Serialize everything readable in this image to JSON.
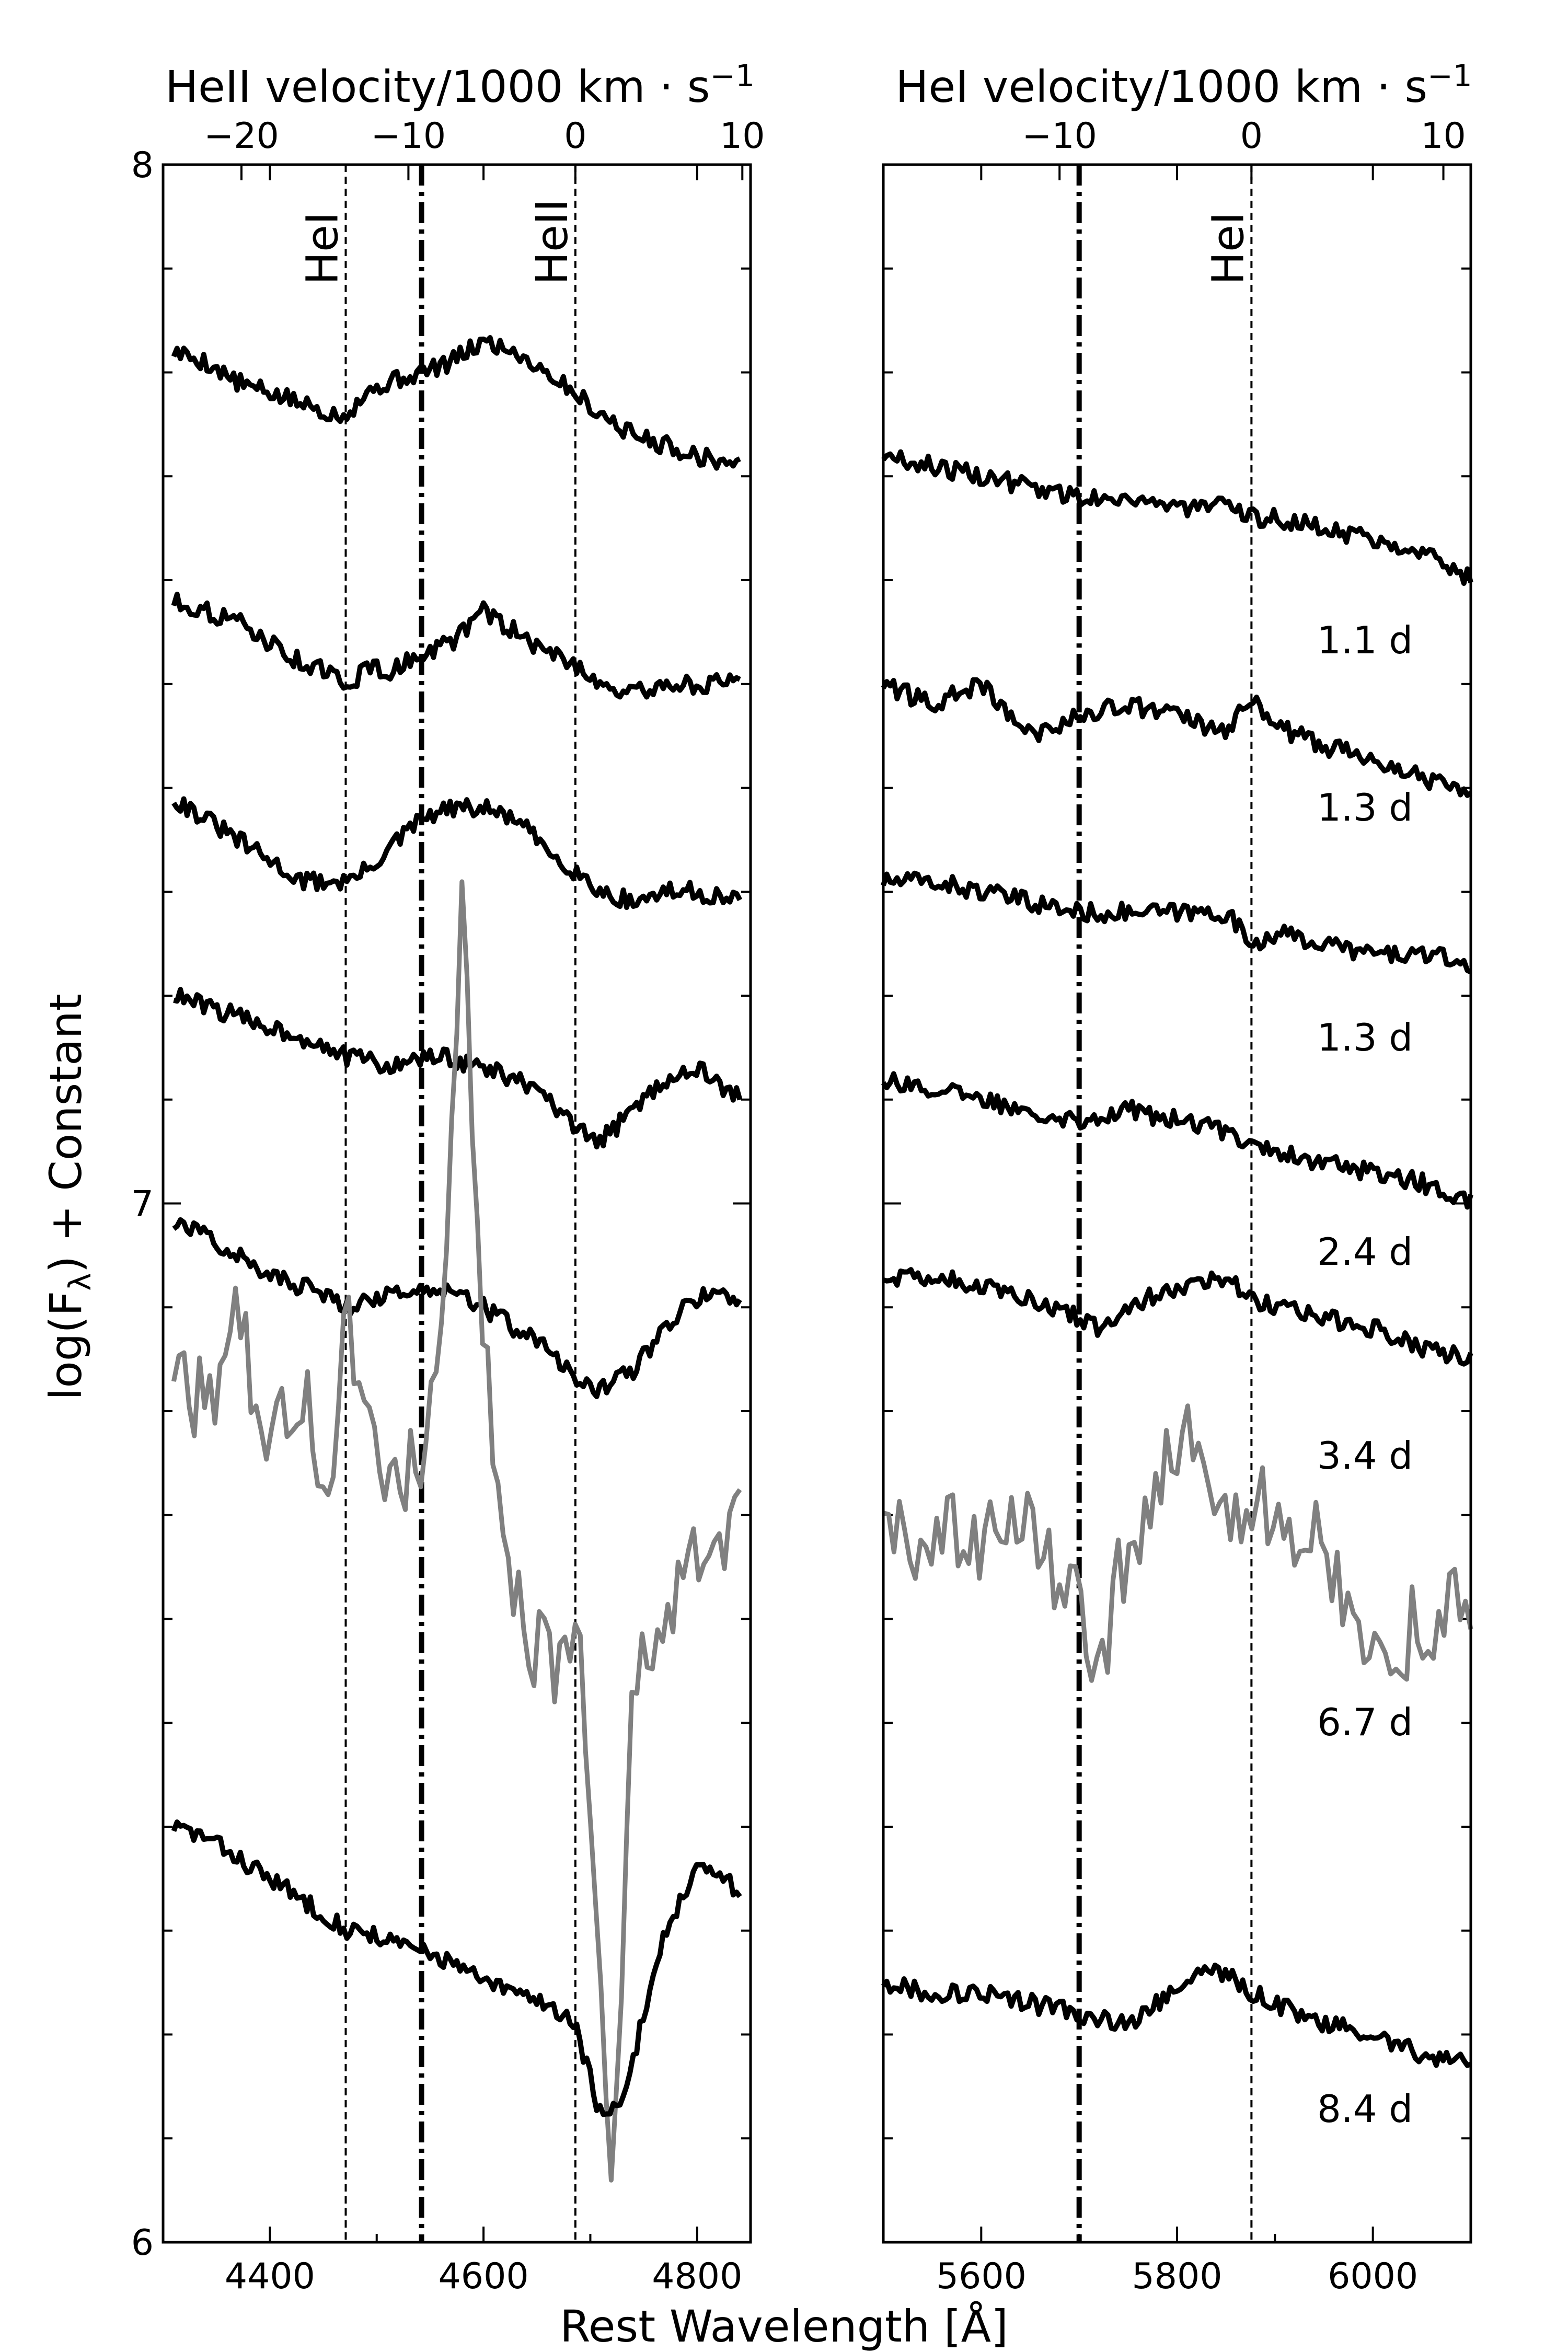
{
  "chart_data": [
    {
      "type": "line",
      "panel": "left",
      "xlabel": "",
      "ylabel": "log(F_λ) + Constant",
      "ylabel_display": "log(Fλ) + Constant",
      "xlim": [
        4300,
        4850
      ],
      "ylim": [
        6,
        8
      ],
      "xticks": [
        4400,
        4600,
        4800
      ],
      "yticks": [
        6,
        7,
        8
      ],
      "top_axis": {
        "label": "HeII velocity/1000 km · s⁻¹",
        "label_main": "HeII velocity/1000 km · s",
        "label_sup": "−1",
        "rest_wavelength": 4686,
        "ticks": [
          -20,
          -10,
          0,
          10
        ],
        "tick_labels": [
          "−20",
          "−10",
          "0",
          "10"
        ]
      },
      "reference_lines": [
        {
          "x": 4471,
          "style": "dashed",
          "label": "HeI"
        },
        {
          "x": 4542,
          "style": "dashdot",
          "label": ""
        },
        {
          "x": 4686,
          "style": "dashed",
          "label": "HeII"
        }
      ],
      "series": [
        {
          "epoch": "1.1 d",
          "color": "#000000",
          "x": [
            4310,
            4340,
            4370,
            4400,
            4430,
            4460,
            4471,
            4490,
            4510,
            4542,
            4570,
            4600,
            4630,
            4660,
            4686,
            4710,
            4740,
            4770,
            4800,
            4840
          ],
          "y": [
            7.82,
            7.81,
            7.79,
            7.78,
            7.77,
            7.76,
            7.76,
            7.78,
            7.79,
            7.8,
            7.81,
            7.83,
            7.82,
            7.8,
            7.78,
            7.76,
            7.74,
            7.73,
            7.72,
            7.71
          ]
        },
        {
          "epoch": "1.3 d",
          "color": "#000000",
          "x": [
            4310,
            4340,
            4370,
            4400,
            4430,
            4460,
            4471,
            4490,
            4510,
            4542,
            4570,
            4600,
            4630,
            4660,
            4686,
            4710,
            4740,
            4770,
            4800,
            4840
          ],
          "y": [
            7.58,
            7.57,
            7.56,
            7.54,
            7.52,
            7.51,
            7.49,
            7.52,
            7.51,
            7.53,
            7.54,
            7.57,
            7.55,
            7.53,
            7.52,
            7.5,
            7.49,
            7.5,
            7.5,
            7.5
          ]
        },
        {
          "epoch": "1.3 d",
          "color": "#000000",
          "x": [
            4310,
            4340,
            4370,
            4400,
            4430,
            4460,
            4471,
            4490,
            4510,
            4542,
            4570,
            4600,
            4630,
            4660,
            4686,
            4710,
            4740,
            4770,
            4800,
            4840
          ],
          "y": [
            7.39,
            7.37,
            7.35,
            7.33,
            7.31,
            7.31,
            7.31,
            7.32,
            7.34,
            7.37,
            7.38,
            7.38,
            7.37,
            7.34,
            7.32,
            7.3,
            7.29,
            7.3,
            7.3,
            7.29
          ]
        },
        {
          "epoch": "2.4 d",
          "color": "#000000",
          "x": [
            4310,
            4340,
            4370,
            4400,
            4430,
            4460,
            4471,
            4490,
            4510,
            4542,
            4570,
            4600,
            4630,
            4660,
            4686,
            4710,
            4740,
            4770,
            4800,
            4840
          ],
          "y": [
            7.2,
            7.19,
            7.18,
            7.17,
            7.16,
            7.15,
            7.14,
            7.14,
            7.13,
            7.14,
            7.14,
            7.13,
            7.12,
            7.1,
            7.07,
            7.06,
            7.09,
            7.12,
            7.13,
            7.1
          ]
        },
        {
          "epoch": "3.4 d",
          "color": "#000000",
          "x": [
            4310,
            4340,
            4370,
            4400,
            4430,
            4460,
            4471,
            4490,
            4510,
            4542,
            4570,
            4600,
            4630,
            4660,
            4686,
            4710,
            4740,
            4770,
            4800,
            4840
          ],
          "y": [
            6.98,
            6.97,
            6.95,
            6.93,
            6.92,
            6.91,
            6.9,
            6.91,
            6.91,
            6.92,
            6.92,
            6.9,
            6.88,
            6.86,
            6.83,
            6.82,
            6.84,
            6.88,
            6.91,
            6.91
          ]
        },
        {
          "epoch": "6.7 d",
          "color": "#808080",
          "x": [
            4310,
            4340,
            4370,
            4400,
            4430,
            4460,
            4471,
            4490,
            4510,
            4542,
            4560,
            4580,
            4600,
            4630,
            4660,
            4686,
            4700,
            4720,
            4740,
            4770,
            4800,
            4840
          ],
          "y": [
            6.85,
            6.8,
            6.88,
            6.76,
            6.82,
            6.7,
            6.9,
            6.78,
            6.72,
            6.76,
            6.88,
            7.27,
            6.85,
            6.62,
            6.55,
            6.6,
            6.45,
            6.05,
            6.52,
            6.6,
            6.65,
            6.7
          ]
        },
        {
          "epoch": "8.4 d",
          "color": "#000000",
          "x": [
            4310,
            4340,
            4370,
            4400,
            4430,
            4460,
            4471,
            4490,
            4510,
            4542,
            4570,
            4600,
            4630,
            4660,
            4686,
            4710,
            4730,
            4750,
            4770,
            4800,
            4840
          ],
          "y": [
            6.4,
            6.39,
            6.37,
            6.35,
            6.33,
            6.31,
            6.3,
            6.3,
            6.29,
            6.28,
            6.27,
            6.25,
            6.24,
            6.23,
            6.21,
            6.12,
            6.13,
            6.22,
            6.3,
            6.36,
            6.34
          ]
        }
      ]
    },
    {
      "type": "line",
      "panel": "right",
      "xlabel": "",
      "ylabel": "",
      "xlim": [
        5500,
        6100
      ],
      "ylim": [
        6,
        8
      ],
      "xticks": [
        5600,
        5800,
        6000
      ],
      "yticks": [],
      "top_axis": {
        "label": "HeI velocity/1000 km · s⁻¹",
        "label_main": "HeI velocity/1000 km · s",
        "label_sup": "−1",
        "rest_wavelength": 5876,
        "ticks": [
          -10,
          0,
          10
        ],
        "tick_labels": [
          "−10",
          "0",
          "10"
        ]
      },
      "reference_lines": [
        {
          "x": 5700,
          "style": "dashdot",
          "label": ""
        },
        {
          "x": 5876,
          "style": "dashed",
          "label": "HeI"
        }
      ],
      "series": [
        {
          "epoch": "1.1 d",
          "color": "#000000",
          "x": [
            5500,
            5550,
            5600,
            5650,
            5700,
            5750,
            5800,
            5850,
            5876,
            5900,
            5950,
            6000,
            6050,
            6100
          ],
          "y": [
            7.72,
            7.71,
            7.7,
            7.69,
            7.68,
            7.68,
            7.67,
            7.67,
            7.66,
            7.66,
            7.65,
            7.64,
            7.63,
            7.6
          ]
        },
        {
          "epoch": "1.3 d",
          "color": "#000000",
          "x": [
            5500,
            5550,
            5600,
            5650,
            5700,
            5750,
            5800,
            5850,
            5876,
            5900,
            5950,
            6000,
            6050,
            6100
          ],
          "y": [
            7.5,
            7.48,
            7.5,
            7.45,
            7.47,
            7.48,
            7.47,
            7.45,
            7.49,
            7.46,
            7.44,
            7.43,
            7.41,
            7.4
          ]
        },
        {
          "epoch": "1.3 d",
          "color": "#000000",
          "x": [
            5500,
            5550,
            5600,
            5650,
            5700,
            5750,
            5800,
            5850,
            5876,
            5900,
            5950,
            6000,
            6050,
            6100
          ],
          "y": [
            7.31,
            7.31,
            7.3,
            7.29,
            7.28,
            7.28,
            7.28,
            7.28,
            7.25,
            7.26,
            7.25,
            7.24,
            7.24,
            7.23
          ]
        },
        {
          "epoch": "2.4 d",
          "color": "#000000",
          "x": [
            5500,
            5550,
            5600,
            5650,
            5700,
            5750,
            5800,
            5850,
            5876,
            5900,
            5950,
            6000,
            6050,
            6100
          ],
          "y": [
            7.12,
            7.11,
            7.1,
            7.09,
            7.08,
            7.09,
            7.08,
            7.07,
            7.06,
            7.05,
            7.04,
            7.03,
            7.02,
            7.0
          ]
        },
        {
          "epoch": "3.4 d",
          "color": "#000000",
          "x": [
            5500,
            5550,
            5600,
            5650,
            5700,
            5720,
            5750,
            5800,
            5850,
            5876,
            5900,
            5950,
            6000,
            6050,
            6100
          ],
          "y": [
            6.93,
            6.93,
            6.92,
            6.91,
            6.89,
            6.88,
            6.9,
            6.92,
            6.93,
            6.91,
            6.9,
            6.89,
            6.88,
            6.86,
            6.85
          ]
        },
        {
          "epoch": "6.7 d",
          "color": "#808080",
          "x": [
            5500,
            5530,
            5560,
            5600,
            5640,
            5680,
            5700,
            5720,
            5750,
            5780,
            5820,
            5850,
            5880,
            5910,
            5940,
            5970,
            6000,
            6030,
            6060,
            6100
          ],
          "y": [
            6.72,
            6.65,
            6.7,
            6.66,
            6.72,
            6.62,
            6.64,
            6.55,
            6.68,
            6.72,
            6.8,
            6.7,
            6.72,
            6.68,
            6.7,
            6.62,
            6.58,
            6.58,
            6.6,
            6.62
          ]
        },
        {
          "epoch": "8.4 d",
          "color": "#000000",
          "x": [
            5500,
            5550,
            5600,
            5650,
            5700,
            5750,
            5780,
            5800,
            5830,
            5850,
            5876,
            5900,
            5950,
            6000,
            6050,
            6100
          ],
          "y": [
            6.25,
            6.24,
            6.24,
            6.23,
            6.22,
            6.21,
            6.23,
            6.25,
            6.26,
            6.26,
            6.24,
            6.23,
            6.21,
            6.2,
            6.18,
            6.17
          ]
        }
      ]
    }
  ],
  "shared": {
    "xlabel": "Rest Wavelength [Å]",
    "ylabel_main": "log(F",
    "ylabel_sub": "λ",
    "ylabel_tail": ") + Constant",
    "epoch_labels": [
      "1.1 d",
      "1.3 d",
      "1.3 d",
      "2.4 d",
      "3.4 d",
      "6.7 d",
      "8.4 d"
    ]
  }
}
